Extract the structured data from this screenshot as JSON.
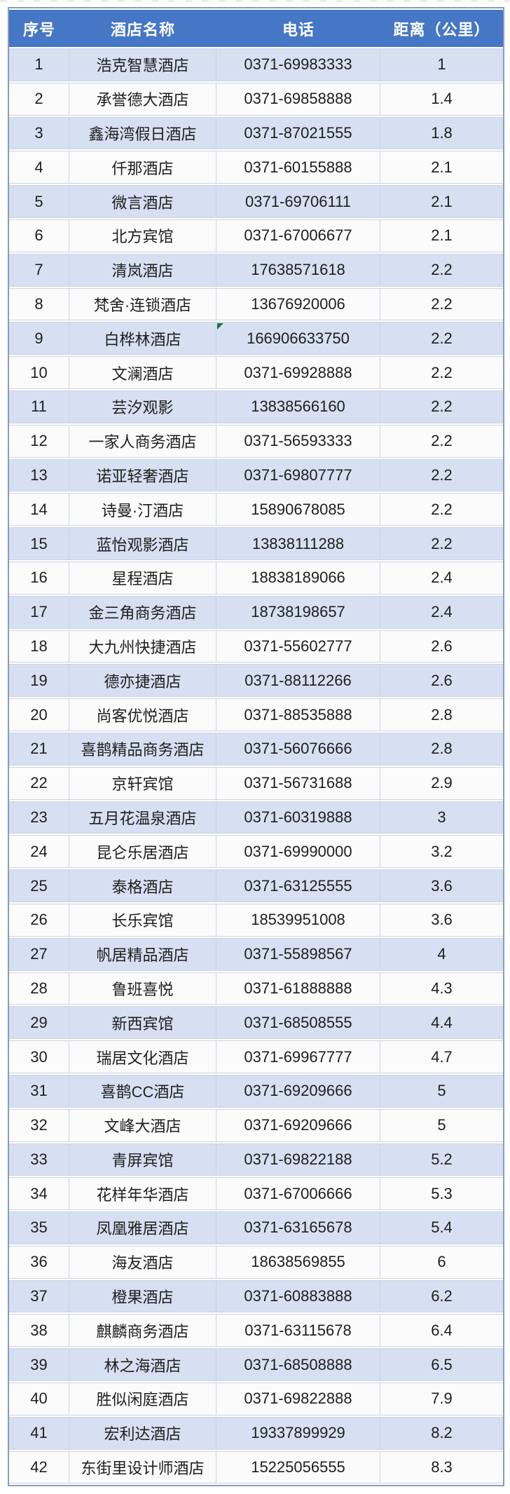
{
  "chart_data": {
    "type": "table",
    "title": "",
    "columns": [
      "序号",
      "酒店名称",
      "电话",
      "距离（公里）"
    ],
    "rows": [
      [
        "1",
        "浩克智慧酒店",
        "0371-69983333",
        "1"
      ],
      [
        "2",
        "承誉德大酒店",
        "0371-69858888",
        "1.4"
      ],
      [
        "3",
        "鑫海湾假日酒店",
        "0371-87021555",
        "1.8"
      ],
      [
        "4",
        "仟那酒店",
        "0371-60155888",
        "2.1"
      ],
      [
        "5",
        "微言酒店",
        "0371-69706111",
        "2.1"
      ],
      [
        "6",
        "北方宾馆",
        "0371-67006677",
        "2.1"
      ],
      [
        "7",
        "清岚酒店",
        "17638571618",
        "2.2"
      ],
      [
        "8",
        "梵舍·连锁酒店",
        "13676920006",
        "2.2"
      ],
      [
        "9",
        "白桦林酒店",
        "166906633750",
        "2.2"
      ],
      [
        "10",
        "文澜酒店",
        "0371-69928888",
        "2.2"
      ],
      [
        "11",
        "芸汐观影",
        "13838566160",
        "2.2"
      ],
      [
        "12",
        "一家人商务酒店",
        "0371-56593333",
        "2.2"
      ],
      [
        "13",
        "诺亚轻奢酒店",
        "0371-69807777",
        "2.2"
      ],
      [
        "14",
        "诗曼·汀酒店",
        "15890678085",
        "2.2"
      ],
      [
        "15",
        "蓝怡观影酒店",
        "13838111288",
        "2.2"
      ],
      [
        "16",
        "星程酒店",
        "18838189066",
        "2.4"
      ],
      [
        "17",
        "金三角商务酒店",
        "18738198657",
        "2.4"
      ],
      [
        "18",
        "大九州快捷酒店",
        "0371-55602777",
        "2.6"
      ],
      [
        "19",
        "德亦捷酒店",
        "0371-88112266",
        "2.6"
      ],
      [
        "20",
        "尚客优悦酒店",
        "0371-88535888",
        "2.8"
      ],
      [
        "21",
        "喜鹊精品商务酒店",
        "0371-56076666",
        "2.8"
      ],
      [
        "22",
        "京轩宾馆",
        "0371-56731688",
        "2.9"
      ],
      [
        "23",
        "五月花温泉酒店",
        "0371-60319888",
        "3"
      ],
      [
        "24",
        "昆仑乐居酒店",
        "0371-69990000",
        "3.2"
      ],
      [
        "25",
        "泰格酒店",
        "0371-63125555",
        "3.6"
      ],
      [
        "26",
        "长乐宾馆",
        "18539951008",
        "3.6"
      ],
      [
        "27",
        "帆居精品酒店",
        "0371-55898567",
        "4"
      ],
      [
        "28",
        "鲁班喜悦",
        "0371-61888888",
        "4.3"
      ],
      [
        "29",
        "新西宾馆",
        "0371-68508555",
        "4.4"
      ],
      [
        "30",
        "瑞居文化酒店",
        "0371-69967777",
        "4.7"
      ],
      [
        "31",
        "喜鹊CC酒店",
        "0371-69209666",
        "5"
      ],
      [
        "32",
        "文峰大酒店",
        "0371-69209666",
        "5"
      ],
      [
        "33",
        "青屏宾馆",
        "0371-69822188",
        "5.2"
      ],
      [
        "34",
        "花样年华酒店",
        "0371-67006666",
        "5.3"
      ],
      [
        "35",
        "凤凰雅居酒店",
        "0371-63165678",
        "5.4"
      ],
      [
        "36",
        "海友酒店",
        "18638569855",
        "6"
      ],
      [
        "37",
        "橙果酒店",
        "0371-60883888",
        "6.2"
      ],
      [
        "38",
        "麒麟商务酒店",
        "0371-63115678",
        "6.4"
      ],
      [
        "39",
        "林之海酒店",
        "0371-68508888",
        "6.5"
      ],
      [
        "40",
        "胜似闲庭酒店",
        "0371-69822888",
        "7.9"
      ],
      [
        "41",
        "宏利达酒店",
        "19337899929",
        "8.2"
      ],
      [
        "42",
        "东街里设计师酒店",
        "15225056555",
        "8.3"
      ]
    ],
    "layout": {
      "header_position": "top",
      "banded_rows": true,
      "grid": true
    }
  },
  "annotations": {
    "error_flag": {
      "row_index": "9",
      "column": "电话",
      "icon": "error-flag-triangle"
    }
  },
  "colors": {
    "header_bg": "#4577c6",
    "header_text": "#ffffff",
    "row_odd_bg": "#d6e0f2",
    "row_even_bg": "#fbfbfc",
    "cell_text": "#1e1e1e",
    "outer_border": "#8a9cba",
    "divider": "#ccd3e0",
    "flag_color": "#217346"
  }
}
